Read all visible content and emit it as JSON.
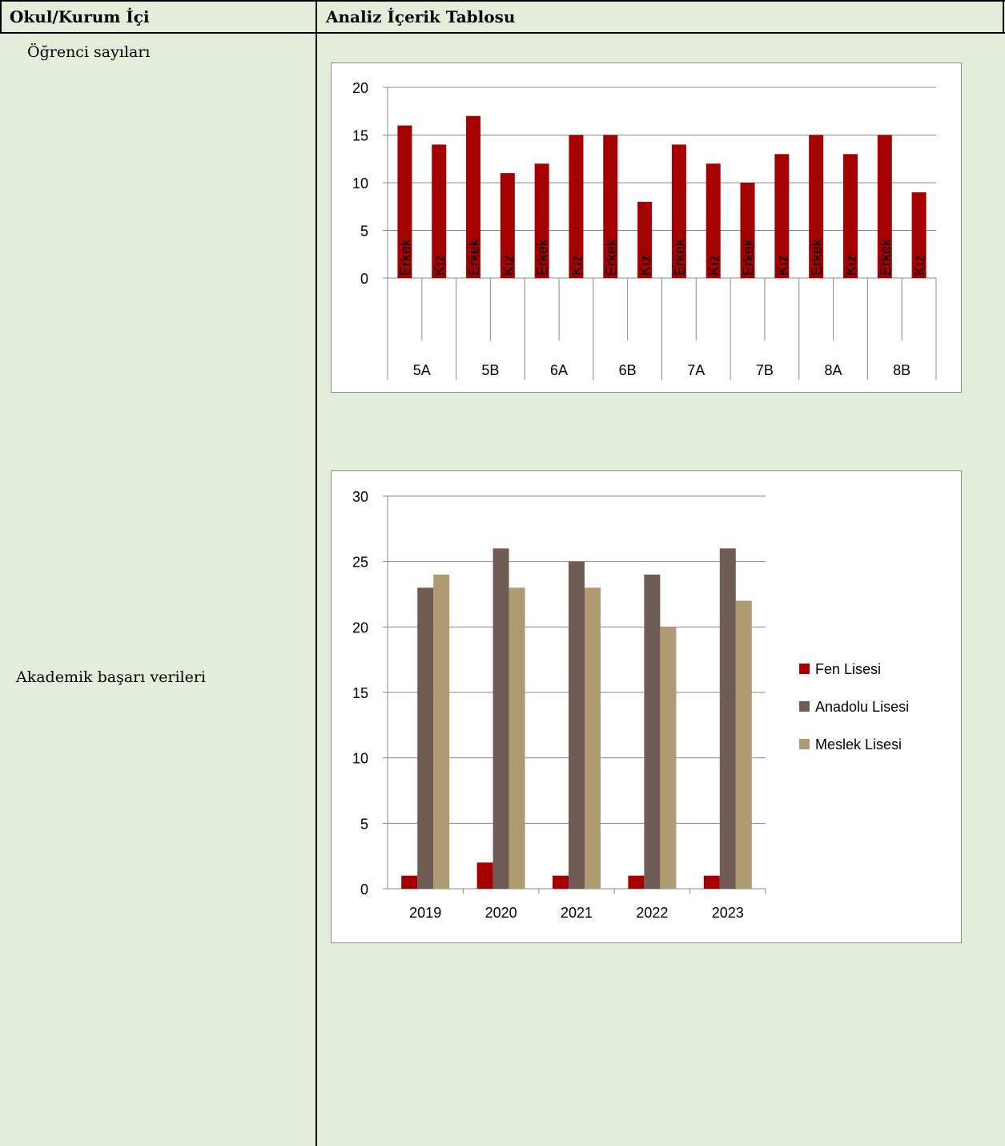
{
  "table": {
    "header_left": "Okul/Kurum İçi",
    "header_right": "Analiz İçerik Tablosu",
    "row1_label": "Öğrenci sayıları",
    "row2_label": "Akademik başarı verileri"
  },
  "chart_data": [
    {
      "type": "bar",
      "title": "",
      "groups": [
        "5A",
        "5B",
        "6A",
        "6B",
        "7A",
        "7B",
        "8A",
        "8B"
      ],
      "subcategories": [
        "Erkek",
        "Kız"
      ],
      "values": [
        16,
        14,
        17,
        11,
        12,
        15,
        15,
        8,
        14,
        12,
        10,
        13,
        15,
        13,
        15,
        9
      ],
      "ylim": [
        0,
        20
      ],
      "yticks": [
        0,
        5,
        10,
        15,
        20
      ],
      "grid": true,
      "color": "#a50000"
    },
    {
      "type": "bar",
      "title": "",
      "categories": [
        "2019",
        "2020",
        "2021",
        "2022",
        "2023"
      ],
      "series": [
        {
          "name": "Fen Lisesi",
          "values": [
            1,
            2,
            1,
            1,
            1
          ],
          "color": "#a50000"
        },
        {
          "name": "Anadolu Lisesi",
          "values": [
            23,
            26,
            25,
            24,
            26
          ],
          "color": "#6f5c55"
        },
        {
          "name": "Meslek Lisesi",
          "values": [
            24,
            23,
            23,
            20,
            22
          ],
          "color": "#b09a72"
        }
      ],
      "ylim": [
        0,
        30
      ],
      "yticks": [
        0,
        5,
        10,
        15,
        20,
        25,
        30
      ],
      "grid": true,
      "legend": "right"
    }
  ]
}
